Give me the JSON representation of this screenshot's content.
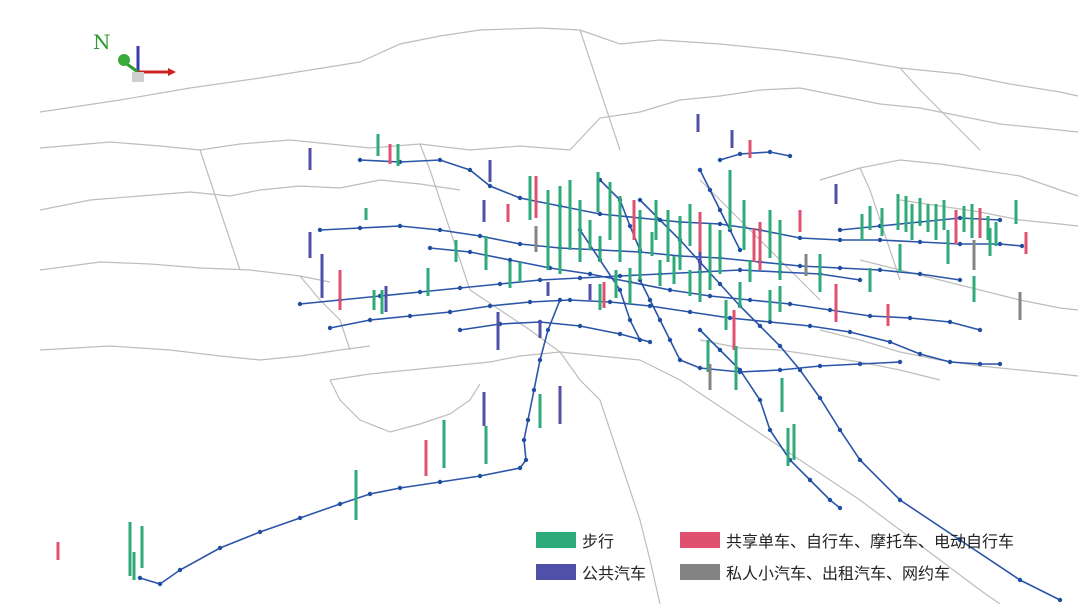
{
  "compass": {
    "north_label": "N",
    "icon": "north-arrow-axes-icon"
  },
  "legend": {
    "items": [
      {
        "key": "walk",
        "label": "步行",
        "color": "#2eab79"
      },
      {
        "key": "shared",
        "label": "共享单车、自行车、摩托车、电动自行车",
        "color": "#e0506f"
      },
      {
        "key": "bus",
        "label": "公共汽车",
        "color": "#5150a8"
      },
      {
        "key": "car",
        "label": "私人小汽车、出租汽车、网约车",
        "color": "#848484"
      }
    ]
  },
  "colors": {
    "district_boundary": "#bdbdbd",
    "metro_line": "#2a55a8",
    "station": "#1f4fa0"
  }
}
